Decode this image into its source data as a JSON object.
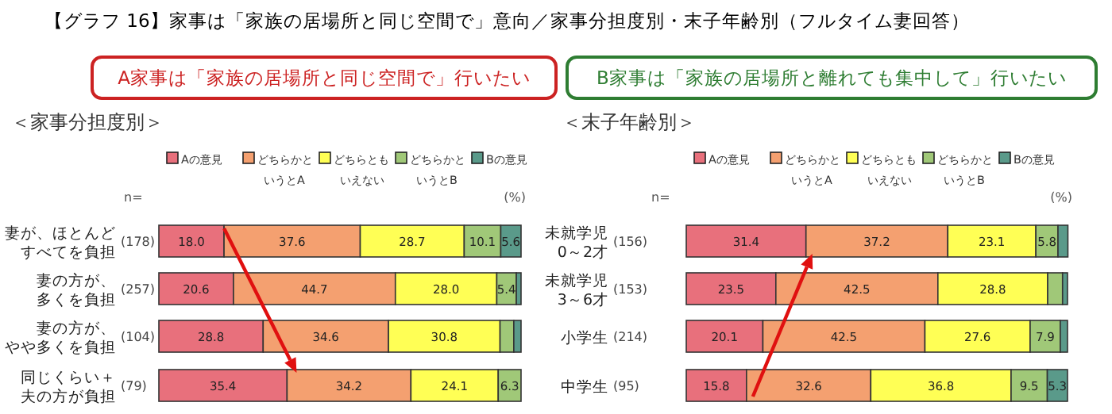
{
  "chart_data": [
    {
      "type": "bar",
      "orientation": "horizontal",
      "stacked": true,
      "title": "＜家事分担度別＞",
      "legend": "top",
      "tick_labels": "y",
      "categories": [
        "妻が、ほとんどすべてを負担",
        "妻の方が、多くを負担",
        "妻の方が、やや多くを負担",
        "同じくらい＋夫の方が負担"
      ],
      "y2_categories": [
        "(178)",
        "(257)",
        "(104)",
        "(79)"
      ],
      "xlim": [
        0,
        100
      ],
      "annotations": [
        "【グラフ 16】家事は「家族の居場所と同じ空間で」意向／家事分担度別・末子年齢別（フルタイム妻回答）",
        "A家事は「家族の居場所と同じ空間で」行いたい",
        "n=",
        "(%)"
      ],
      "series": [
        {
          "name": "Aの意見",
          "color": "#e8707c",
          "values": [
            18.0,
            20.6,
            28.8,
            35.4
          ],
          "value_labels": [
            "18.0",
            "20.6",
            "28.8",
            "35.4"
          ]
        },
        {
          "name": "どちらかというとA",
          "color": "#f4a070",
          "values": [
            37.6,
            44.7,
            34.6,
            34.2
          ],
          "value_labels": [
            "37.6",
            "44.7",
            "34.6",
            "34.2"
          ]
        },
        {
          "name": "どちらともいえない",
          "color": "#ffff55",
          "values": [
            28.7,
            28.0,
            30.8,
            24.1
          ],
          "value_labels": [
            "28.7",
            "28.0",
            "30.8",
            "24.1"
          ]
        },
        {
          "name": "どちらかというとB",
          "color": "#a0c878",
          "values": [
            10.1,
            5.4,
            3.8,
            6.3
          ],
          "value_labels": [
            "10.1",
            "5.4",
            null,
            "6.3"
          ]
        },
        {
          "name": "Bの意見",
          "color": "#5a9a8a",
          "values": [
            5.6,
            1.3,
            2.0,
            0
          ],
          "value_labels": [
            "5.6",
            null,
            null,
            null
          ]
        }
      ]
    },
    {
      "type": "bar",
      "orientation": "horizontal",
      "stacked": true,
      "title": "＜末子年齢別＞",
      "legend": "top",
      "tick_labels": "y",
      "categories": [
        "未就学児0～2才",
        "未就学児3～6才",
        "小学生",
        "中学生"
      ],
      "y2_categories": [
        "(156)",
        "(153)",
        "(214)",
        "(95)"
      ],
      "xlim": [
        0,
        100
      ],
      "annotations": [
        "B家事は「家族の居場所と離れても集中して」行いたい",
        "n=",
        "(%)"
      ],
      "series": [
        {
          "name": "Aの意見",
          "color": "#e8707c",
          "values": [
            31.4,
            23.5,
            20.1,
            15.8
          ],
          "value_labels": [
            "31.4",
            "23.5",
            "20.1",
            "15.8"
          ]
        },
        {
          "name": "どちらかというとA",
          "color": "#f4a070",
          "values": [
            37.2,
            42.5,
            42.5,
            32.6
          ],
          "value_labels": [
            "37.2",
            "42.5",
            "42.5",
            "32.6"
          ]
        },
        {
          "name": "どちらともいえない",
          "color": "#ffff55",
          "values": [
            23.1,
            28.8,
            27.6,
            36.8
          ],
          "value_labels": [
            "23.1",
            "28.8",
            "27.6",
            "36.8"
          ]
        },
        {
          "name": "どちらかというとB",
          "color": "#a0c878",
          "values": [
            5.8,
            3.9,
            7.9,
            9.5
          ],
          "value_labels": [
            "5.8",
            null,
            "7.9",
            "9.5"
          ]
        },
        {
          "name": "Bの意見",
          "color": "#5a9a8a",
          "values": [
            2.6,
            1.3,
            1.9,
            5.3
          ],
          "value_labels": [
            null,
            null,
            null,
            "5.3"
          ]
        }
      ]
    }
  ]
}
